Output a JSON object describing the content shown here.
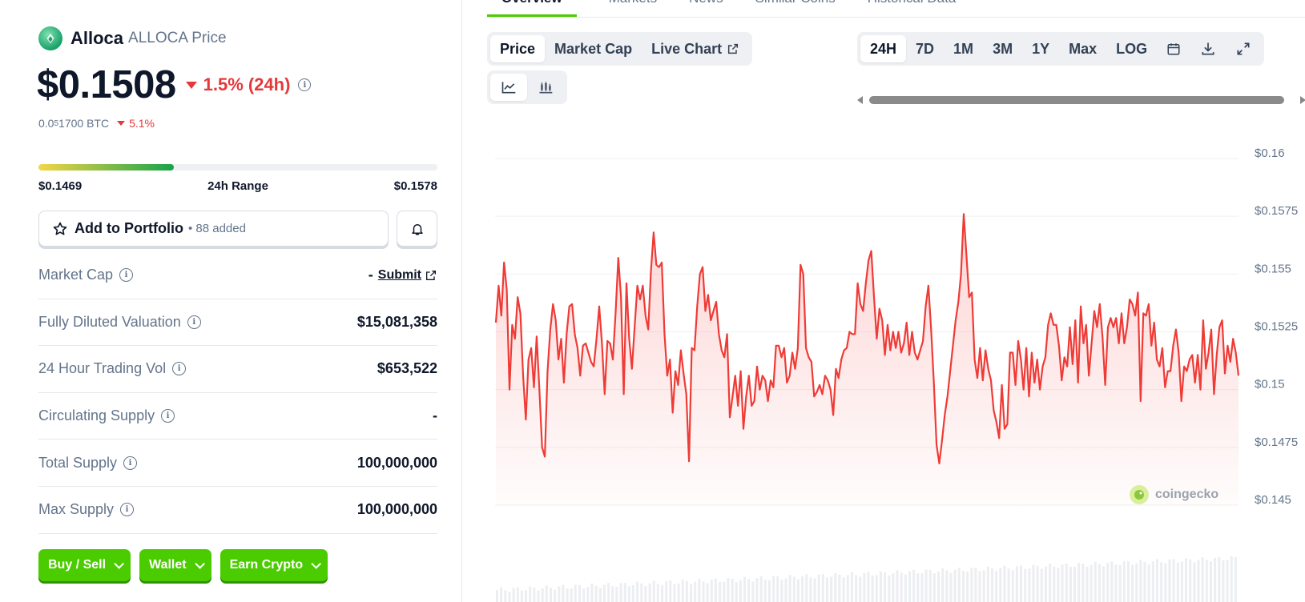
{
  "coin": {
    "name": "Alloca",
    "symbol_label": "ALLOCA Price",
    "price": "$0.1508",
    "change_24h": "1.5% (24h)",
    "btc_price_prefix": "0.0",
    "btc_price_sub": "5",
    "btc_price_suffix": "1700 BTC",
    "btc_change": "5.1%",
    "change_color": "#e5383b"
  },
  "range": {
    "low": "$0.1469",
    "label": "24h Range",
    "high": "$0.1578",
    "position_fraction": 0.34
  },
  "portfolio": {
    "label": "Add to Portfolio",
    "added": "• 88 added"
  },
  "stats": [
    {
      "label": "Market Cap",
      "value": "-",
      "link": "Submit"
    },
    {
      "label": "Fully Diluted Valuation",
      "value": "$15,081,358"
    },
    {
      "label": "24 Hour Trading Vol",
      "value": "$653,522"
    },
    {
      "label": "Circulating Supply",
      "value": "-"
    },
    {
      "label": "Total Supply",
      "value": "100,000,000"
    },
    {
      "label": "Max Supply",
      "value": "100,000,000"
    }
  ],
  "actions": [
    "Buy / Sell",
    "Wallet",
    "Earn Crypto"
  ],
  "accent_green": "#4bcc00",
  "top_tabs": [
    "Overview",
    "Markets",
    "News",
    "Similar Coins",
    "Historical Data"
  ],
  "chart_tabs": [
    "Price",
    "Market Cap",
    "Live Chart"
  ],
  "time_ranges": [
    "24H",
    "7D",
    "1M",
    "3M",
    "1Y",
    "Max",
    "LOG"
  ],
  "active_time_range": "24H",
  "watermark": "coingecko",
  "chart_data": {
    "type": "line",
    "ylim": [
      0.145,
      0.16
    ],
    "ytick_labels": [
      "$0.16",
      "$0.1575",
      "$0.155",
      "$0.1525",
      "$0.15",
      "$0.1475",
      "$0.145"
    ],
    "yticks": [
      0.16,
      0.1575,
      0.155,
      0.1525,
      0.15,
      0.1475,
      0.145
    ],
    "line_color": "#ef3b36",
    "series": [
      {
        "values": [
          0.1529,
          0.1545,
          0.1532,
          0.1555,
          0.1543,
          0.15,
          0.1528,
          0.1522,
          0.154,
          0.1533,
          0.1506,
          0.1487,
          0.1513,
          0.1518,
          0.1501,
          0.1523,
          0.15,
          0.1475,
          0.1471,
          0.1508,
          0.1526,
          0.1537,
          0.153,
          0.1513,
          0.1522,
          0.1503,
          0.1524,
          0.1536,
          0.1537,
          0.1524,
          0.1518,
          0.1506,
          0.1519,
          0.152,
          0.1516,
          0.1512,
          0.151,
          0.1522,
          0.1536,
          0.152,
          0.1498,
          0.1521,
          0.152,
          0.1513,
          0.1533,
          0.1557,
          0.154,
          0.1498,
          0.1546,
          0.1522,
          0.1509,
          0.1527,
          0.1545,
          0.1539,
          0.1545,
          0.1532,
          0.1526,
          0.1551,
          0.1568,
          0.1554,
          0.1553,
          0.1555,
          0.1524,
          0.1506,
          0.1513,
          0.149,
          0.1508,
          0.1502,
          0.1517,
          0.1507,
          0.1498,
          0.1469,
          0.1518,
          0.1517,
          0.1536,
          0.155,
          0.1553,
          0.1534,
          0.1541,
          0.153,
          0.1534,
          0.1538,
          0.1524,
          0.1517,
          0.1514,
          0.1524,
          0.1488,
          0.1497,
          0.1506,
          0.1493,
          0.1508,
          0.1483,
          0.1497,
          0.1506,
          0.1493,
          0.1495,
          0.151,
          0.15,
          0.1506,
          0.1504,
          0.1495,
          0.1504,
          0.1501,
          0.1519,
          0.1519,
          0.1514,
          0.1518,
          0.1503,
          0.1506,
          0.1516,
          0.1509,
          0.1518,
          0.1554,
          0.155,
          0.1518,
          0.1514,
          0.1512,
          0.1497,
          0.1499,
          0.1502,
          0.1498,
          0.1506,
          0.1504,
          0.15,
          0.1489,
          0.1509,
          0.1505,
          0.1513,
          0.1517,
          0.1518,
          0.1525,
          0.1524,
          0.1524,
          0.1546,
          0.1537,
          0.1534,
          0.1546,
          0.1556,
          0.156,
          0.154,
          0.1522,
          0.1535,
          0.153,
          0.1515,
          0.1528,
          0.1517,
          0.1525,
          0.1518,
          0.1525,
          0.1516,
          0.152,
          0.1529,
          0.1515,
          0.1525,
          0.1516,
          0.1513,
          0.1517,
          0.1521,
          0.1536,
          0.1545,
          0.1526,
          0.1503,
          0.1476,
          0.1468,
          0.1478,
          0.1489,
          0.1497,
          0.1508,
          0.1519,
          0.153,
          0.1538,
          0.155,
          0.1576,
          0.1558,
          0.154,
          0.1542,
          0.1513,
          0.1505,
          0.1518,
          0.1504,
          0.1517,
          0.1509,
          0.1504,
          0.1491,
          0.1486,
          0.1479,
          0.1502,
          0.1483,
          0.1485,
          0.1516,
          0.1516,
          0.1502,
          0.1521,
          0.1513,
          0.15,
          0.1518,
          0.1497,
          0.1516,
          0.1503,
          0.1513,
          0.15,
          0.151,
          0.1514,
          0.1528,
          0.1533,
          0.1528,
          0.1528,
          0.1519,
          0.1504,
          0.1514,
          0.151,
          0.1527,
          0.1511,
          0.153,
          0.1503,
          0.1536,
          0.152,
          0.1528,
          0.1506,
          0.152,
          0.1534,
          0.1527,
          0.1537,
          0.1523,
          0.1502,
          0.1527,
          0.1531,
          0.1527,
          0.1531,
          0.152,
          0.1533,
          0.152,
          0.1527,
          0.1539,
          0.1537,
          0.1532,
          0.1542,
          0.1495,
          0.1533,
          0.1532,
          0.1537,
          0.1519,
          0.1529,
          0.1513,
          0.151,
          0.1518,
          0.1501,
          0.1508,
          0.1508,
          0.1519,
          0.1526,
          0.1516,
          0.1495,
          0.151,
          0.1508,
          0.1513,
          0.1515,
          0.1503,
          0.1515,
          0.15,
          0.153,
          0.1509,
          0.1516,
          0.1526,
          0.1498,
          0.1515,
          0.1527,
          0.153,
          0.1507,
          0.1519,
          0.1512,
          0.1522,
          0.1516,
          0.1506
        ]
      }
    ]
  }
}
